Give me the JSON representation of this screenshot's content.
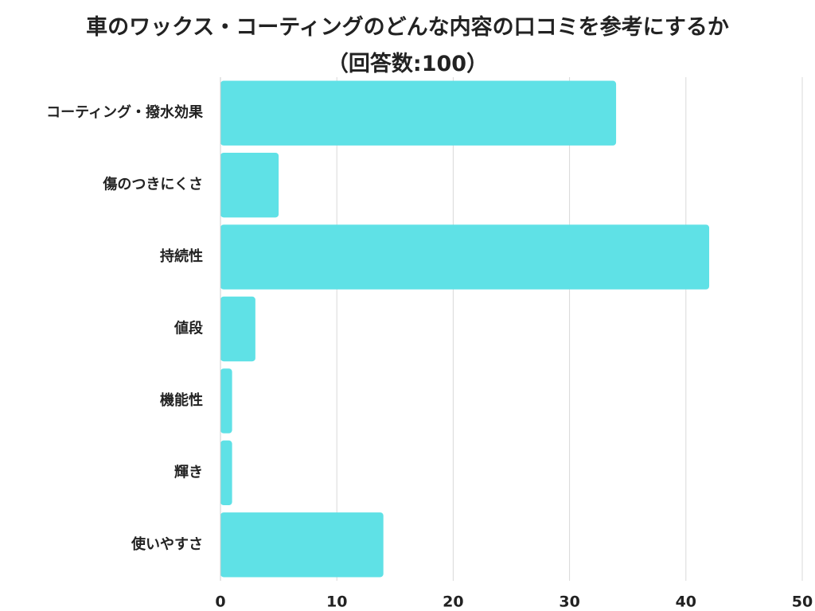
{
  "title": "車のワックス・コーティングのどんな内容の口コミを参考にするか",
  "subtitle": "（回答数:100）",
  "colors": {
    "bar": "#5fe1e6",
    "grid": "#d9d9d9",
    "axis": "#cccccc",
    "text": "#222222"
  },
  "chart_data": {
    "type": "bar",
    "orientation": "horizontal",
    "title": "車のワックス・コーティングのどんな内容の口コミを参考にするか",
    "subtitle": "（回答数:100）",
    "categories": [
      "コーティング・撥水効果",
      "傷のつきにくさ",
      "持続性",
      "値段",
      "機能性",
      "輝き",
      "使いやすさ"
    ],
    "values": [
      34,
      5,
      42,
      3,
      1,
      1,
      14
    ],
    "xlim": [
      0,
      50
    ],
    "xticks": [
      0,
      10,
      20,
      30,
      40,
      50
    ],
    "grid": true,
    "xlabel": "",
    "ylabel": ""
  }
}
